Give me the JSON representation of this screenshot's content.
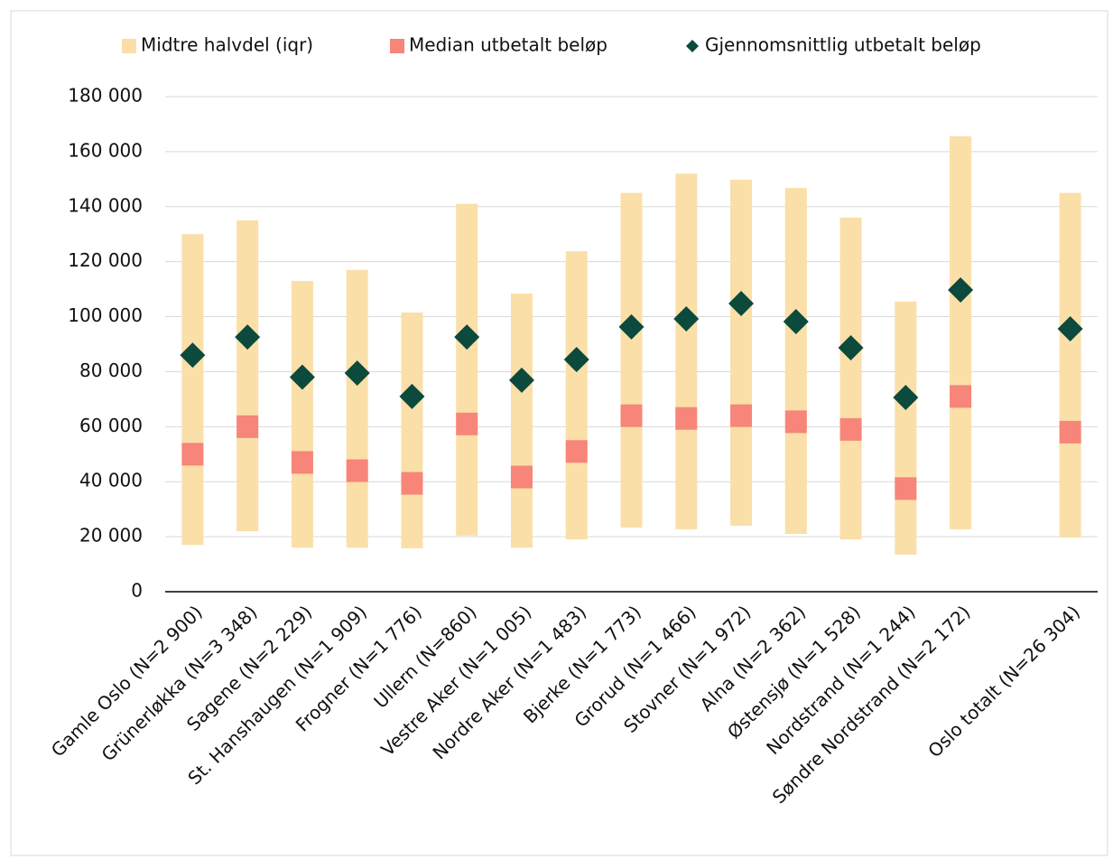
{
  "chart_data": {
    "type": "dot_range",
    "categories": [
      "Gamle Oslo (N=2 900)",
      "Grünerløkka (N=3 348)",
      "Sagene (N=2 229)",
      "St. Hanshaugen (N=1 909)",
      "Frogner (N=1 776)",
      "Ullern (N=860)",
      "Vestre Aker (N=1 005)",
      "Nordre Aker (N=1 483)",
      "Bjerke (N=1 773)",
      "Grorud (N=1 466)",
      "Stovner (N=1 972)",
      "Alna (N=2 362)",
      "Østensjø (N=1 528)",
      "Nordstrand (N=1 244)",
      "Søndre Nordstrand (N=2 172)",
      null,
      "Oslo totalt (N=26 304)"
    ],
    "series": [
      {
        "name": "Midtre halvdel (iqr)",
        "color": "#fadfa8",
        "low": [
          17000,
          22000,
          16000,
          16000,
          15800,
          20400,
          16000,
          19000,
          23300,
          22700,
          24000,
          21000,
          19000,
          13500,
          22700,
          null,
          19700
        ],
        "high": [
          130000,
          135000,
          113000,
          117000,
          101500,
          141000,
          108400,
          123800,
          145000,
          152000,
          149800,
          146800,
          136000,
          105500,
          165600,
          null,
          145000
        ]
      },
      {
        "name": "Median utbetalt beløp",
        "color": "#f78579",
        "values": [
          50000,
          60000,
          47000,
          44000,
          39400,
          61000,
          41700,
          51000,
          64000,
          63000,
          64000,
          61800,
          59000,
          37500,
          71000,
          null,
          58000
        ]
      },
      {
        "name": "Gjennomsnittlig utbetalt beløp",
        "color": "#0b4a3c",
        "values": [
          86000,
          92600,
          78000,
          79500,
          71000,
          92600,
          76900,
          84400,
          96300,
          99200,
          104800,
          98200,
          88700,
          70600,
          109700,
          null,
          95600
        ]
      }
    ],
    "ylim": [
      0,
      180000
    ],
    "yticks": [
      0,
      {
        "value": 20000,
        "label": "20 000"
      },
      {
        "value": 40000,
        "label": "40 000"
      },
      {
        "value": 60000,
        "label": "60 000"
      },
      {
        "value": 80000,
        "label": "80 000"
      },
      {
        "value": 100000,
        "label": "100 000"
      },
      {
        "value": 120000,
        "label": "120 000"
      },
      {
        "value": 140000,
        "label": "140 000"
      },
      {
        "value": 160000,
        "label": "160 000"
      },
      {
        "value": 180000,
        "label": "180 000"
      }
    ],
    "grid": true,
    "legend": "top"
  }
}
